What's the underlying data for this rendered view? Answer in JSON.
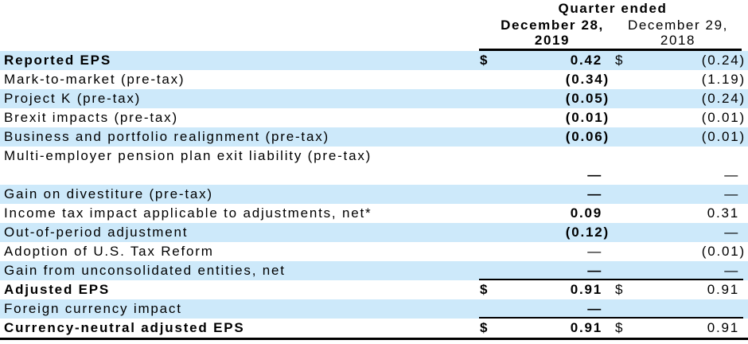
{
  "header": {
    "group_title": "Quarter ended",
    "columns": [
      {
        "line1": "December 28,",
        "line2": "2019",
        "bold": true
      },
      {
        "line1": "December 29,",
        "line2": "2018",
        "bold": false
      }
    ]
  },
  "colors": {
    "row_shade": "#cde9fa",
    "rule": "#000000",
    "text": "#000000"
  },
  "rows": [
    {
      "label": "Reported EPS",
      "label_bold": true,
      "shade": true,
      "tall": false,
      "cur1": "$",
      "val1": "0.42",
      "val1_bold": true,
      "cur2": "$",
      "val2": "(0.24)",
      "rule_below": false
    },
    {
      "label": "Mark-to-market (pre-tax)",
      "label_bold": false,
      "shade": false,
      "tall": false,
      "cur1": "",
      "val1": "(0.34)",
      "val1_bold": true,
      "cur2": "",
      "val2": "(1.19)",
      "rule_below": false
    },
    {
      "label": "Project K (pre-tax)",
      "label_bold": false,
      "shade": true,
      "tall": false,
      "cur1": "",
      "val1": "(0.05)",
      "val1_bold": true,
      "cur2": "",
      "val2": "(0.24)",
      "rule_below": false
    },
    {
      "label": "Brexit impacts (pre-tax)",
      "label_bold": false,
      "shade": false,
      "tall": false,
      "cur1": "",
      "val1": "(0.01)",
      "val1_bold": true,
      "cur2": "",
      "val2": "(0.01)",
      "rule_below": false
    },
    {
      "label": "Business and portfolio realignment (pre-tax)",
      "label_bold": false,
      "shade": true,
      "tall": false,
      "cur1": "",
      "val1": "(0.06)",
      "val1_bold": true,
      "cur2": "",
      "val2": "(0.01)",
      "rule_below": false
    },
    {
      "label": "Multi-employer pension plan exit liability (pre-tax)",
      "label_bold": false,
      "shade": false,
      "tall": true,
      "cur1": "",
      "val1": "—",
      "val1_bold": true,
      "cur2": "",
      "val2": "—",
      "rule_below": false
    },
    {
      "label": "Gain on divestiture (pre-tax)",
      "label_bold": false,
      "shade": true,
      "tall": false,
      "cur1": "",
      "val1": "—",
      "val1_bold": true,
      "cur2": "",
      "val2": "—",
      "rule_below": false
    },
    {
      "label": "Income tax impact applicable to adjustments, net*",
      "label_bold": false,
      "shade": false,
      "tall": false,
      "cur1": "",
      "val1": "0.09",
      "val1_bold": true,
      "cur2": "",
      "val2": "0.31",
      "rule_below": false
    },
    {
      "label": "Out-of-period adjustment",
      "label_bold": false,
      "shade": true,
      "tall": false,
      "cur1": "",
      "val1": "(0.12)",
      "val1_bold": true,
      "cur2": "",
      "val2": "—",
      "rule_below": false
    },
    {
      "label": "Adoption of U.S. Tax Reform",
      "label_bold": false,
      "shade": false,
      "tall": false,
      "cur1": "",
      "val1": "—",
      "val1_bold": false,
      "cur2": "",
      "val2": "(0.01)",
      "rule_below": false
    },
    {
      "label": "Gain from unconsolidated entities, net",
      "label_bold": false,
      "shade": true,
      "tall": false,
      "cur1": "",
      "val1": "—",
      "val1_bold": true,
      "cur2": "",
      "val2": "—",
      "rule_below": true
    },
    {
      "label": "Adjusted EPS",
      "label_bold": true,
      "shade": false,
      "tall": false,
      "cur1": "$",
      "val1": "0.91",
      "val1_bold": true,
      "cur2": "$",
      "val2": "0.91",
      "rule_below": false
    },
    {
      "label": "Foreign currency impact",
      "label_bold": false,
      "shade": true,
      "tall": false,
      "cur1": "",
      "val1": "—",
      "val1_bold": true,
      "cur2": "",
      "val2": "",
      "rule_below": true
    },
    {
      "label": "Currency-neutral adjusted EPS",
      "label_bold": true,
      "shade": false,
      "tall": false,
      "cur1": "$",
      "val1": "0.91",
      "val1_bold": true,
      "cur2": "$",
      "val2": "0.91",
      "rule_below": false
    }
  ]
}
